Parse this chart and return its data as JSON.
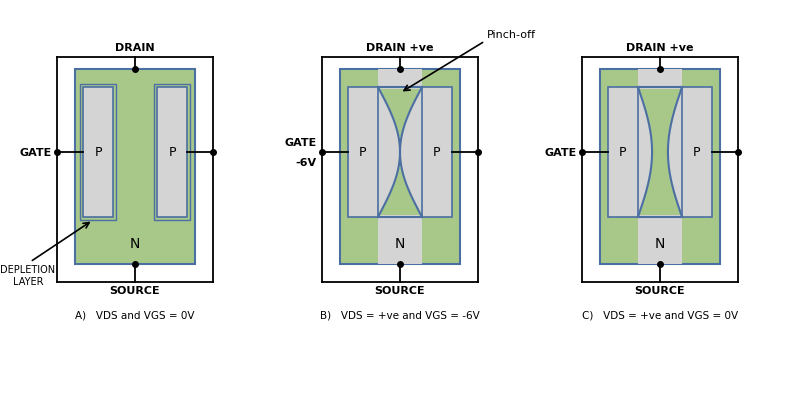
{
  "bg_color": "#ffffff",
  "green_color": "#a8c88a",
  "gray_color": "#d4d4d4",
  "blue_outline": "#4a6fa0",
  "wire_color": "#000000",
  "diagrams": [
    {
      "label_a": "A)   ",
      "label_b": "V",
      "label_ds": "DS",
      "label_c": " and ",
      "label_d": "V",
      "label_gs": "GS",
      "label_e": " = 0V",
      "drain_label": "DRAIN",
      "gate_label": "GATE",
      "gate_label2": "",
      "source_label": "SOURCE",
      "depletion_annotation": true,
      "pinchoff_annotation": false,
      "depletion_style": "small"
    },
    {
      "label_a": "B)   ",
      "label_b": "V",
      "label_ds": "DS",
      "label_c": " = +ve and ",
      "label_d": "V",
      "label_gs": "GS",
      "label_e": " = -6V",
      "drain_label": "DRAIN +ve",
      "gate_label": "GATE",
      "gate_label2": "-6V",
      "source_label": "SOURCE",
      "depletion_annotation": false,
      "pinchoff_annotation": true,
      "depletion_style": "large"
    },
    {
      "label_a": "C)   ",
      "label_b": "V",
      "label_ds": "DS",
      "label_c": " = +ve and ",
      "label_d": "V",
      "label_gs": "GS",
      "label_e": " = 0V",
      "drain_label": "DRAIN +ve",
      "gate_label": "GATE",
      "gate_label2": "",
      "source_label": "SOURCE",
      "depletion_annotation": false,
      "pinchoff_annotation": false,
      "depletion_style": "medium"
    }
  ]
}
